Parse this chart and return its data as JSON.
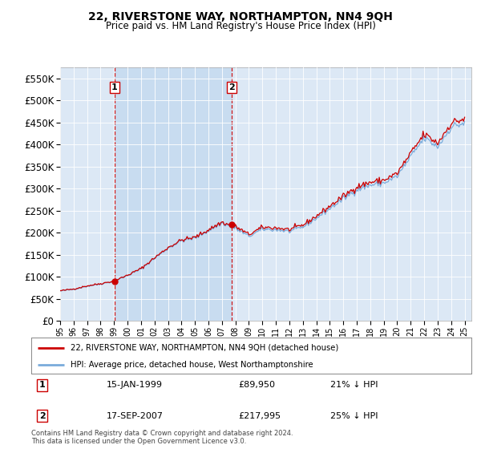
{
  "title": "22, RIVERSTONE WAY, NORTHAMPTON, NN4 9QH",
  "subtitle": "Price paid vs. HM Land Registry's House Price Index (HPI)",
  "legend_label_red": "22, RIVERSTONE WAY, NORTHAMPTON, NN4 9QH (detached house)",
  "legend_label_blue": "HPI: Average price, detached house, West Northamptonshire",
  "footnote": "Contains HM Land Registry data © Crown copyright and database right 2024.\nThis data is licensed under the Open Government Licence v3.0.",
  "sale1_date": "15-JAN-1999",
  "sale1_price": "£89,950",
  "sale1_hpi": "21% ↓ HPI",
  "sale2_date": "17-SEP-2007",
  "sale2_price": "£217,995",
  "sale2_hpi": "25% ↓ HPI",
  "sale1_x": 1999.04,
  "sale1_y": 89950,
  "sale2_x": 2007.72,
  "sale2_y": 217995,
  "ylim": [
    0,
    575000
  ],
  "xlim_start": 1995.0,
  "xlim_end": 2025.5,
  "background_color": "#ffffff",
  "plot_bg_color": "#dce8f5",
  "shaded_color": "#c8dcf0",
  "grid_color": "#ffffff",
  "red_color": "#cc0000",
  "blue_color": "#7aabdb",
  "vline_color": "#cc0000"
}
